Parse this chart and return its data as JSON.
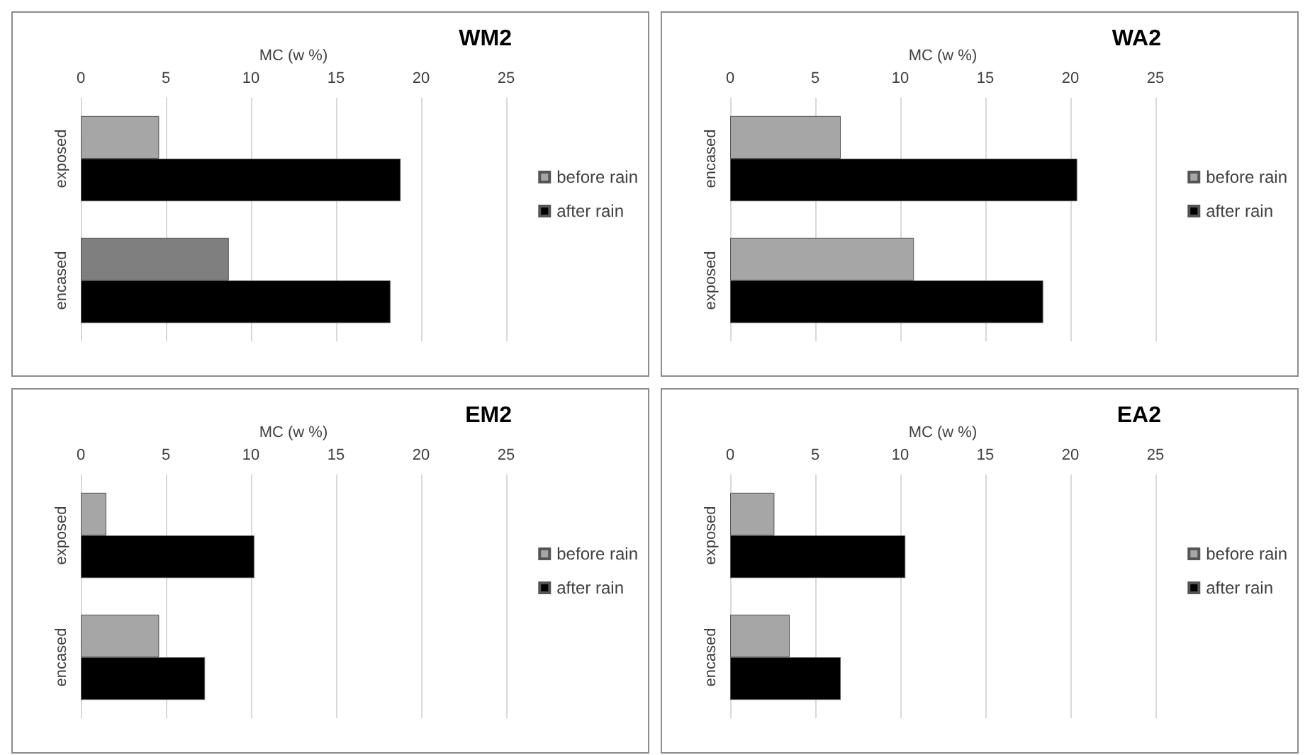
{
  "chart_data": [
    {
      "type": "bar",
      "orientation": "horizontal",
      "title": "WM2",
      "xlabel": "MC (w %)",
      "categories": [
        "exposed",
        "encased"
      ],
      "xlim": [
        0,
        25
      ],
      "xticks": [
        0,
        5,
        10,
        15,
        20,
        25
      ],
      "grid": "x",
      "legend": "right",
      "series": [
        {
          "name": "before rain",
          "color": "#a6a6a6",
          "colors": [
            "#a6a6a6",
            "#7f7f7f"
          ],
          "values": [
            4.6,
            8.7
          ]
        },
        {
          "name": "after rain",
          "color": "#000000",
          "values": [
            18.8,
            18.2
          ]
        }
      ]
    },
    {
      "type": "bar",
      "orientation": "horizontal",
      "title": "WA2",
      "xlabel": "MC (w %)",
      "categories": [
        "encased",
        "exposed"
      ],
      "xlim": [
        0,
        25
      ],
      "xticks": [
        0,
        5,
        10,
        15,
        20,
        25
      ],
      "grid": "x",
      "legend": "right",
      "series": [
        {
          "name": "before rain",
          "color": "#a6a6a6",
          "values": [
            6.5,
            10.8
          ]
        },
        {
          "name": "after rain",
          "color": "#000000",
          "values": [
            20.4,
            18.4
          ]
        }
      ]
    },
    {
      "type": "bar",
      "orientation": "horizontal",
      "title": "EM2",
      "xlabel": "MC (w %)",
      "categories": [
        "exposed",
        "encased"
      ],
      "xlim": [
        0,
        25
      ],
      "xticks": [
        0,
        5,
        10,
        15,
        20,
        25
      ],
      "grid": "x",
      "legend": "right",
      "series": [
        {
          "name": "before rain",
          "color": "#a6a6a6",
          "values": [
            1.5,
            4.6
          ]
        },
        {
          "name": "after rain",
          "color": "#000000",
          "values": [
            10.2,
            7.3
          ]
        }
      ]
    },
    {
      "type": "bar",
      "orientation": "horizontal",
      "title": "EA2",
      "xlabel": "MC (w %)",
      "categories": [
        "exposed",
        "encased"
      ],
      "xlim": [
        0,
        25
      ],
      "xticks": [
        0,
        5,
        10,
        15,
        20,
        25
      ],
      "grid": "x",
      "legend": "right",
      "series": [
        {
          "name": "before rain",
          "color": "#a6a6a6",
          "values": [
            2.6,
            3.5
          ]
        },
        {
          "name": "after rain",
          "color": "#000000",
          "values": [
            10.3,
            6.5
          ]
        }
      ]
    }
  ]
}
